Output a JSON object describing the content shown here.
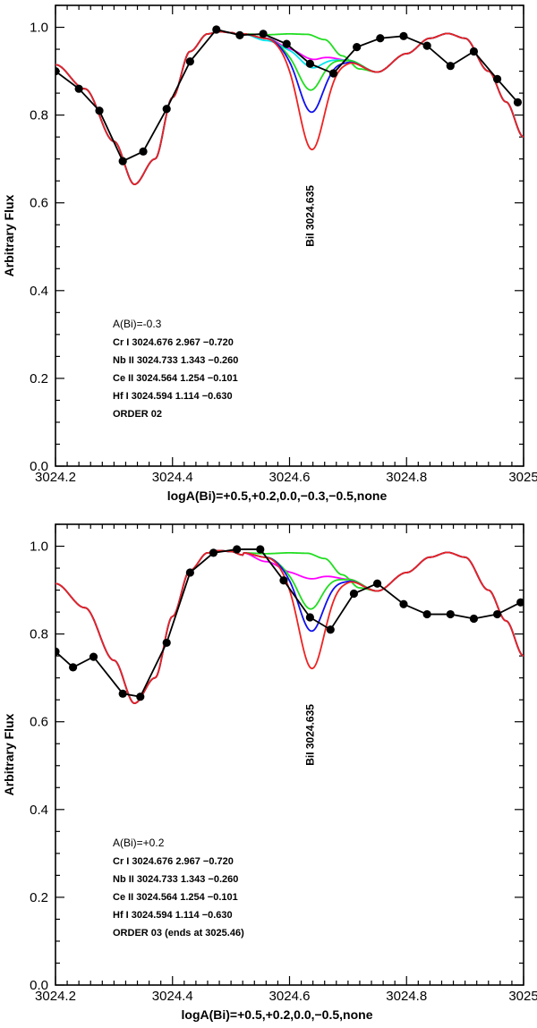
{
  "chart_data": [
    {
      "type": "line",
      "panel": "top",
      "xlabel": "logA(Bi)=+0.5,+0.2,0.0,−0.3,−0.5,none",
      "ylabel": "Arbitrary Flux",
      "xlim": [
        3024.2,
        3025.0
      ],
      "ylim": [
        0.0,
        1.05
      ],
      "xticks": [
        3024.2,
        3024.4,
        3024.6,
        3024.8,
        3025
      ],
      "xtick_labels": [
        "3024.2",
        "3024.4",
        "3024.6",
        "3024.8",
        "3025"
      ],
      "yticks": [
        0.0,
        0.2,
        0.4,
        0.6,
        0.8,
        1.0
      ],
      "ytick_labels": [
        "0.0",
        "0.2",
        "0.4",
        "0.6",
        "0.8",
        "1.0"
      ],
      "line_label": {
        "text": "BiI 3024.635",
        "x": 3024.635,
        "y": 0.57
      },
      "annotations": [
        "A(Bi)=-0.3",
        "Cr I 3024.676 2.967 −0.720",
        "Nb II 3024.733 1.343 −0.260",
        "Ce II 3024.564 1.254 −0.101",
        "Hf I 3024.594 1.114 −0.630",
        "ORDER 02"
      ],
      "observed": {
        "x": [
          3024.2,
          3024.24,
          3024.275,
          3024.315,
          3024.35,
          3024.39,
          3024.43,
          3024.475,
          3024.515,
          3024.555,
          3024.595,
          3024.635,
          3024.675,
          3024.715,
          3024.755,
          3024.795,
          3024.835,
          3024.875,
          3024.915,
          3024.955,
          3024.99
        ],
        "y": [
          0.9,
          0.86,
          0.81,
          0.695,
          0.717,
          0.814,
          0.922,
          0.995,
          0.982,
          0.985,
          0.962,
          0.917,
          0.895,
          0.955,
          0.975,
          0.98,
          0.958,
          0.912,
          0.945,
          0.882,
          0.829
        ]
      },
      "base_model": {
        "x": [
          3024.2,
          3024.25,
          3024.3,
          3024.335,
          3024.37,
          3024.4,
          3024.43,
          3024.46,
          3024.48,
          3024.5,
          3024.52,
          3024.75,
          3024.8,
          3024.84,
          3024.87,
          3024.9,
          3024.94,
          3024.97,
          3025.0
        ],
        "y": [
          0.915,
          0.86,
          0.74,
          0.642,
          0.7,
          0.84,
          0.945,
          0.985,
          0.99,
          0.988,
          0.98,
          0.898,
          0.94,
          0.975,
          0.986,
          0.975,
          0.9,
          0.83,
          0.75
        ]
      },
      "series": [
        {
          "name": "none",
          "color": "#22dd22",
          "center": 3024.635,
          "width": 0.03,
          "depth": 0.0,
          "base": [
            [
              3024.52,
              0.985
            ],
            [
              3024.56,
              0.983
            ],
            [
              3024.6,
              0.985
            ],
            [
              3024.63,
              0.984
            ],
            [
              3024.66,
              0.972
            ],
            [
              3024.69,
              0.935
            ],
            [
              3024.72,
              0.905
            ],
            [
              3024.75,
              0.898
            ]
          ]
        },
        {
          "name": "-0.5",
          "color": "#ff00ff",
          "center": 3024.635,
          "width": 0.03,
          "depth": 0.015,
          "base": [
            [
              3024.52,
              0.985
            ],
            [
              3024.56,
              0.975
            ],
            [
              3024.6,
              0.955
            ],
            [
              3024.65,
              0.94
            ],
            [
              3024.7,
              0.925
            ],
            [
              3024.75,
              0.898
            ]
          ]
        },
        {
          "name": "-0.3",
          "color": "#00e5ee",
          "center": 3024.635,
          "width": 0.03,
          "depth": 0.03,
          "base": [
            [
              3024.52,
              0.985
            ],
            [
              3024.56,
              0.97
            ],
            [
              3024.6,
              0.955
            ],
            [
              3024.65,
              0.935
            ],
            [
              3024.7,
              0.925
            ],
            [
              3024.75,
              0.898
            ]
          ]
        },
        {
          "name": "0.0",
          "color": "#22dd22",
          "center": 3024.635,
          "width": 0.03,
          "depth": 0.09,
          "base": [
            [
              3024.52,
              0.985
            ],
            [
              3024.56,
              0.975
            ],
            [
              3024.6,
              0.955
            ],
            [
              3024.65,
              0.945
            ],
            [
              3024.7,
              0.925
            ],
            [
              3024.75,
              0.898
            ]
          ]
        },
        {
          "name": "+0.2",
          "color": "#1010ee",
          "center": 3024.637,
          "width": 0.031,
          "depth": 0.14,
          "base": [
            [
              3024.52,
              0.985
            ],
            [
              3024.56,
              0.975
            ],
            [
              3024.6,
              0.955
            ],
            [
              3024.65,
              0.945
            ],
            [
              3024.7,
              0.922
            ],
            [
              3024.75,
              0.898
            ]
          ]
        },
        {
          "name": "+0.5",
          "color": "#ee2222",
          "center": 3024.638,
          "width": 0.032,
          "depth": 0.225,
          "base": [
            [
              3024.52,
              0.985
            ],
            [
              3024.56,
              0.975
            ],
            [
              3024.6,
              0.955
            ],
            [
              3024.65,
              0.945
            ],
            [
              3024.7,
              0.922
            ],
            [
              3024.75,
              0.898
            ]
          ]
        }
      ]
    },
    {
      "type": "line",
      "panel": "bottom",
      "xlabel": "logA(Bi)=+0.5,+0.2,0.0,−0.5,none",
      "ylabel": "Arbitrary Flux",
      "xlim": [
        3024.2,
        3025.0
      ],
      "ylim": [
        0.0,
        1.05
      ],
      "xticks": [
        3024.2,
        3024.4,
        3024.6,
        3024.8,
        3025
      ],
      "xtick_labels": [
        "3024.2",
        "3024.4",
        "3024.6",
        "3024.8",
        "3025"
      ],
      "yticks": [
        0.0,
        0.2,
        0.4,
        0.6,
        0.8,
        1.0
      ],
      "ytick_labels": [
        "0.0",
        "0.2",
        "0.4",
        "0.6",
        "0.8",
        "1.0"
      ],
      "line_label": {
        "text": "BiI 3024.635",
        "x": 3024.635,
        "y": 0.57
      },
      "annotations": [
        "A(Bi)=+0.2",
        "Cr I 3024.676 2.967 −0.720",
        "Nb II 3024.733 1.343 −0.260",
        "Ce II 3024.564 1.254 −0.101",
        "Hf I 3024.594 1.114 −0.630",
        "ORDER 03 (ends at 3025.46)"
      ],
      "observed": {
        "x": [
          3024.2,
          3024.23,
          3024.265,
          3024.315,
          3024.345,
          3024.39,
          3024.43,
          3024.47,
          3024.51,
          3024.55,
          3024.59,
          3024.635,
          3024.67,
          3024.71,
          3024.75,
          3024.795,
          3024.835,
          3024.875,
          3024.915,
          3024.955,
          3024.995
        ],
        "y": [
          0.76,
          0.724,
          0.748,
          0.664,
          0.657,
          0.78,
          0.94,
          0.985,
          0.993,
          0.993,
          0.922,
          0.838,
          0.81,
          0.892,
          0.915,
          0.868,
          0.845,
          0.845,
          0.835,
          0.845,
          0.872
        ]
      },
      "base_model": {
        "x": [
          3024.2,
          3024.25,
          3024.3,
          3024.335,
          3024.37,
          3024.4,
          3024.43,
          3024.46,
          3024.48,
          3024.5,
          3024.52,
          3024.75,
          3024.8,
          3024.84,
          3024.87,
          3024.9,
          3024.94,
          3024.97,
          3025.0
        ],
        "y": [
          0.915,
          0.86,
          0.74,
          0.642,
          0.7,
          0.84,
          0.945,
          0.985,
          0.99,
          0.988,
          0.98,
          0.898,
          0.94,
          0.975,
          0.986,
          0.975,
          0.9,
          0.83,
          0.75
        ]
      },
      "series": [
        {
          "name": "none",
          "color": "#22dd22",
          "center": 3024.635,
          "width": 0.03,
          "depth": 0.0,
          "base": [
            [
              3024.52,
              0.985
            ],
            [
              3024.56,
              0.983
            ],
            [
              3024.6,
              0.985
            ],
            [
              3024.63,
              0.984
            ],
            [
              3024.66,
              0.972
            ],
            [
              3024.69,
              0.935
            ],
            [
              3024.72,
              0.905
            ],
            [
              3024.75,
              0.898
            ]
          ]
        },
        {
          "name": "-0.5",
          "color": "#ff00ff",
          "center": 3024.635,
          "width": 0.03,
          "depth": 0.015,
          "base": [
            [
              3024.52,
              0.985
            ],
            [
              3024.56,
              0.965
            ],
            [
              3024.6,
              0.945
            ],
            [
              3024.65,
              0.94
            ],
            [
              3024.7,
              0.925
            ],
            [
              3024.75,
              0.898
            ]
          ]
        },
        {
          "name": "0.0",
          "color": "#22dd22",
          "center": 3024.635,
          "width": 0.03,
          "depth": 0.09,
          "base": [
            [
              3024.52,
              0.985
            ],
            [
              3024.56,
              0.975
            ],
            [
              3024.6,
              0.955
            ],
            [
              3024.65,
              0.945
            ],
            [
              3024.7,
              0.925
            ],
            [
              3024.75,
              0.898
            ]
          ]
        },
        {
          "name": "+0.2",
          "color": "#1010ee",
          "center": 3024.637,
          "width": 0.031,
          "depth": 0.14,
          "base": [
            [
              3024.52,
              0.985
            ],
            [
              3024.56,
              0.975
            ],
            [
              3024.6,
              0.955
            ],
            [
              3024.65,
              0.945
            ],
            [
              3024.7,
              0.922
            ],
            [
              3024.75,
              0.898
            ]
          ]
        },
        {
          "name": "+0.5",
          "color": "#ee2222",
          "center": 3024.638,
          "width": 0.032,
          "depth": 0.225,
          "base": [
            [
              3024.52,
              0.985
            ],
            [
              3024.56,
              0.975
            ],
            [
              3024.6,
              0.955
            ],
            [
              3024.65,
              0.945
            ],
            [
              3024.7,
              0.922
            ],
            [
              3024.75,
              0.898
            ]
          ]
        }
      ]
    }
  ]
}
